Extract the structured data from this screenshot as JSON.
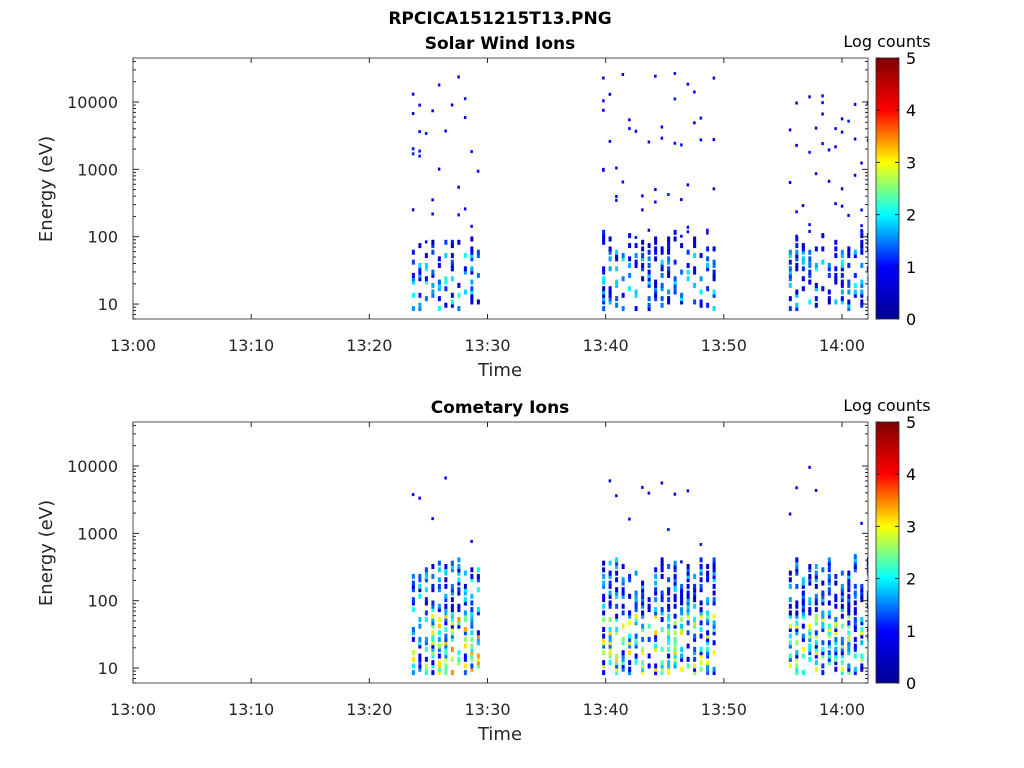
{
  "figure_title": "RPCICA151215T13.PNG",
  "colors": {
    "colormap": [
      "#00008f",
      "#0000ff",
      "#00ffff",
      "#ffff00",
      "#ff0000",
      "#800000"
    ],
    "axis": "#262626"
  },
  "chart_data": [
    {
      "type": "heatmap",
      "title": "Solar Wind Ions",
      "xlabel": "Time",
      "ylabel": "Energy (eV)",
      "x_tick_labels": [
        "13:00",
        "13:10",
        "13:20",
        "13:30",
        "13:40",
        "13:50",
        "14:00"
      ],
      "x_ticks_min": [
        0,
        10,
        20,
        30,
        40,
        50,
        60
      ],
      "xlim_min": [
        0,
        62.2
      ],
      "y_scale": "log",
      "y_tick_labels": [
        "10",
        "100",
        "1000",
        "10000"
      ],
      "y_ticks": [
        10,
        100,
        1000,
        10000
      ],
      "ylim": [
        6,
        45000
      ],
      "colorbar": {
        "label": "Log counts",
        "range": [
          0,
          5
        ],
        "tick_labels": [
          "0",
          "1",
          "2",
          "3",
          "4",
          "5"
        ]
      },
      "bursts": [
        {
          "start_min": 23.6,
          "end_min": 29.6,
          "max_energy_eV": 25000,
          "peak_log_counts": 2.2
        },
        {
          "start_min": 39.7,
          "end_min": 49.3,
          "max_energy_eV": 30000,
          "peak_log_counts": 2.0
        },
        {
          "start_min": 55.5,
          "end_min": 62.2,
          "max_energy_eV": 12000,
          "peak_log_counts": 2.0
        }
      ]
    },
    {
      "type": "heatmap",
      "title": "Cometary Ions",
      "xlabel": "Time",
      "ylabel": "Energy (eV)",
      "x_tick_labels": [
        "13:00",
        "13:10",
        "13:20",
        "13:30",
        "13:40",
        "13:50",
        "14:00"
      ],
      "x_ticks_min": [
        0,
        10,
        20,
        30,
        40,
        50,
        60
      ],
      "xlim_min": [
        0,
        62.2
      ],
      "y_scale": "log",
      "y_tick_labels": [
        "10",
        "100",
        "1000",
        "10000"
      ],
      "y_ticks": [
        10,
        100,
        1000,
        10000
      ],
      "ylim": [
        6,
        45000
      ],
      "colorbar": {
        "label": "Log counts",
        "range": [
          0,
          5
        ],
        "tick_labels": [
          "0",
          "1",
          "2",
          "3",
          "4",
          "5"
        ]
      },
      "bursts": [
        {
          "start_min": 23.6,
          "end_min": 29.6,
          "max_energy_eV": 10000,
          "peak_log_counts": 3.5
        },
        {
          "start_min": 39.7,
          "end_min": 49.3,
          "max_energy_eV": 6000,
          "peak_log_counts": 3.2
        },
        {
          "start_min": 55.5,
          "end_min": 62.2,
          "max_energy_eV": 12000,
          "peak_log_counts": 3.0
        }
      ]
    }
  ]
}
